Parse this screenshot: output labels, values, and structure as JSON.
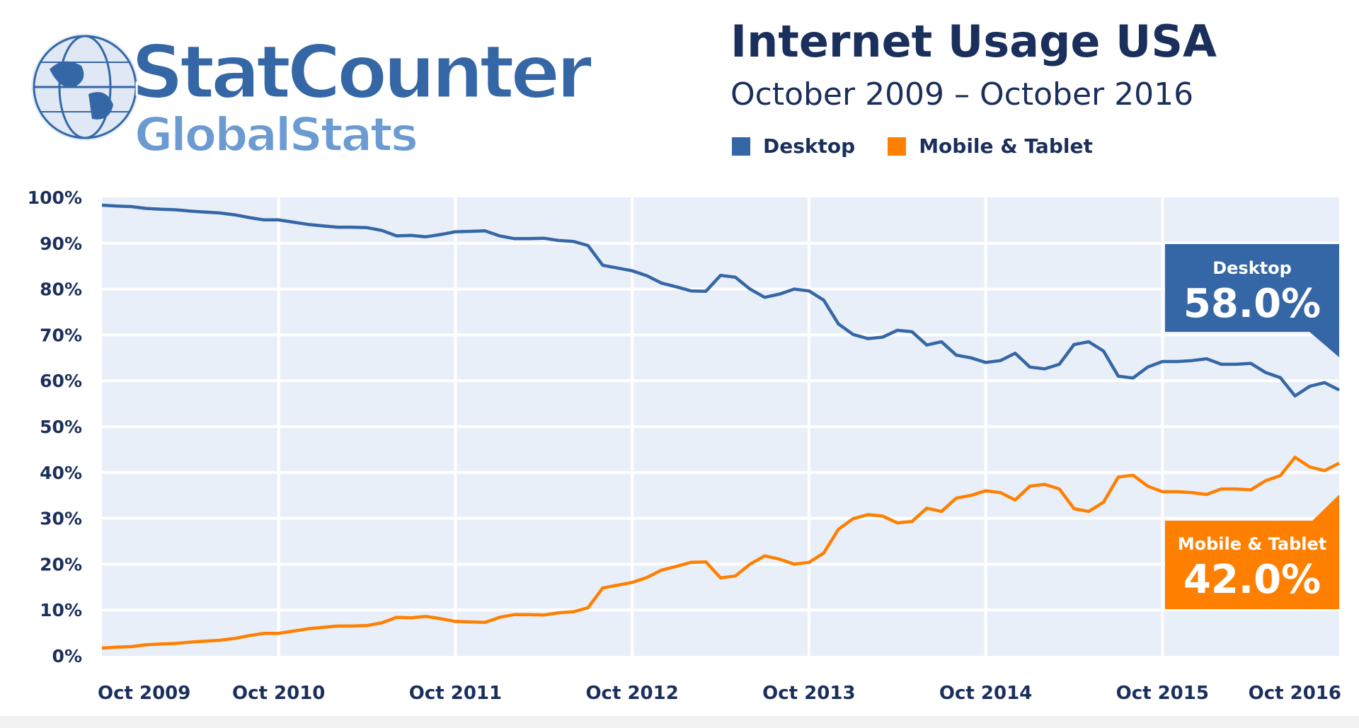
{
  "logo": {
    "line1": "StatCounter",
    "line2": "GlobalStats"
  },
  "header": {
    "title": "Internet Usage USA",
    "subtitle": "October 2009 – October 2016"
  },
  "chart_data": {
    "type": "line",
    "title": "Internet Usage USA",
    "subtitle": "October 2009 – October 2016",
    "x_start": "Oct 2009",
    "x_end": "Oct 2016",
    "x_frequency": "monthly",
    "x_tick_labels": [
      "Oct 2009",
      "Oct 2010",
      "Oct 2011",
      "Oct 2012",
      "Oct 2013",
      "Oct 2014",
      "Oct 2015",
      "Oct 2016"
    ],
    "y_tick_labels": [
      "0%",
      "10%",
      "20%",
      "30%",
      "40%",
      "50%",
      "60%",
      "70%",
      "80%",
      "90%",
      "100%"
    ],
    "ylim": [
      0,
      100
    ],
    "grid": true,
    "legend_position": "top",
    "series": [
      {
        "name": "Desktop",
        "color": "#3567a6",
        "values": [
          98.3,
          98.1,
          98.0,
          97.6,
          97.4,
          97.3,
          97.0,
          96.8,
          96.6,
          96.2,
          95.6,
          95.1,
          95.1,
          94.6,
          94.1,
          93.8,
          93.5,
          93.5,
          93.4,
          92.8,
          91.6,
          91.7,
          91.4,
          91.9,
          92.5,
          92.6,
          92.7,
          91.6,
          91.0,
          91.0,
          91.1,
          90.6,
          90.4,
          89.5,
          85.2,
          84.6,
          84.0,
          82.9,
          81.3,
          80.5,
          79.6,
          79.5,
          83.0,
          82.6,
          80.0,
          78.2,
          78.9,
          80.0,
          79.6,
          77.6,
          72.4,
          70.1,
          69.2,
          69.5,
          71.0,
          70.7,
          67.8,
          68.5,
          65.6,
          65.0,
          64.0,
          64.4,
          66.0,
          63.0,
          62.6,
          63.6,
          67.9,
          68.5,
          66.5,
          61.0,
          60.6,
          63.0,
          64.2,
          64.2,
          64.4,
          64.8,
          63.6,
          63.6,
          63.8,
          61.8,
          60.7,
          56.7,
          58.8,
          59.6,
          58.0
        ]
      },
      {
        "name": "Mobile & Tablet",
        "color": "#ff8000",
        "values": [
          1.7,
          1.9,
          2.0,
          2.4,
          2.6,
          2.7,
          3.0,
          3.2,
          3.4,
          3.8,
          4.4,
          4.9,
          4.9,
          5.4,
          5.9,
          6.2,
          6.5,
          6.5,
          6.6,
          7.2,
          8.4,
          8.3,
          8.6,
          8.1,
          7.5,
          7.4,
          7.3,
          8.4,
          9.0,
          9.0,
          8.9,
          9.4,
          9.6,
          10.5,
          14.8,
          15.4,
          16.0,
          17.1,
          18.7,
          19.5,
          20.4,
          20.5,
          17.0,
          17.4,
          20.0,
          21.8,
          21.1,
          20.0,
          20.4,
          22.4,
          27.6,
          29.9,
          30.8,
          30.5,
          29.0,
          29.3,
          32.2,
          31.5,
          34.4,
          35.0,
          36.0,
          35.6,
          34.0,
          37.0,
          37.4,
          36.4,
          32.1,
          31.5,
          33.5,
          39.0,
          39.4,
          37.0,
          35.8,
          35.8,
          35.6,
          35.2,
          36.4,
          36.4,
          36.2,
          38.2,
          39.3,
          43.3,
          41.2,
          40.4,
          42.0
        ]
      }
    ],
    "annotations": [
      {
        "series": "Desktop",
        "label": "Desktop",
        "value": "58.0%"
      },
      {
        "series": "Mobile & Tablet",
        "label": "Mobile & Tablet",
        "value": "42.0%"
      }
    ]
  }
}
